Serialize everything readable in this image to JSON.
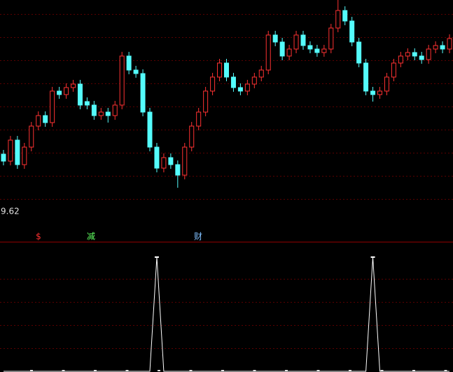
{
  "chart_data": {
    "type": "candlestick",
    "ylim": [
      8.85,
      12.3
    ],
    "up_color": "#ff3232",
    "down_color": "#54fcfc",
    "low_label": "9.62",
    "candles": [
      [
        10.1,
        10.16,
        9.94,
        10.0
      ],
      [
        10.0,
        10.36,
        9.94,
        10.3
      ],
      [
        10.3,
        10.36,
        9.89,
        9.95
      ],
      [
        9.95,
        10.26,
        9.89,
        10.2
      ],
      [
        10.2,
        10.56,
        10.14,
        10.5
      ],
      [
        10.5,
        10.71,
        10.44,
        10.65
      ],
      [
        10.65,
        10.71,
        10.49,
        10.55
      ],
      [
        10.55,
        11.06,
        10.49,
        11.0
      ],
      [
        11.0,
        11.06,
        10.89,
        10.95
      ],
      [
        10.95,
        11.11,
        10.89,
        11.05
      ],
      [
        11.05,
        11.16,
        10.99,
        11.1
      ],
      [
        11.1,
        11.16,
        10.74,
        10.8
      ],
      [
        10.85,
        10.91,
        10.74,
        10.8
      ],
      [
        10.8,
        10.86,
        10.59,
        10.65
      ],
      [
        10.65,
        10.76,
        10.59,
        10.7
      ],
      [
        10.7,
        10.76,
        10.55,
        10.65
      ],
      [
        10.65,
        10.86,
        10.59,
        10.8
      ],
      [
        10.8,
        11.56,
        10.74,
        11.5
      ],
      [
        11.5,
        11.56,
        11.24,
        11.3
      ],
      [
        11.3,
        11.36,
        11.19,
        11.25
      ],
      [
        11.25,
        11.31,
        10.64,
        10.7
      ],
      [
        10.7,
        10.76,
        10.14,
        10.2
      ],
      [
        10.2,
        10.26,
        9.84,
        9.9
      ],
      [
        9.9,
        10.11,
        9.84,
        10.05
      ],
      [
        10.05,
        10.11,
        9.89,
        9.95
      ],
      [
        9.95,
        10.01,
        9.62,
        9.8
      ],
      [
        9.8,
        10.26,
        9.74,
        10.2
      ],
      [
        10.2,
        10.56,
        10.14,
        10.5
      ],
      [
        10.5,
        10.76,
        10.44,
        10.7
      ],
      [
        10.7,
        11.06,
        10.64,
        11.0
      ],
      [
        11.0,
        11.26,
        10.94,
        11.2
      ],
      [
        11.2,
        11.46,
        11.14,
        11.4
      ],
      [
        11.4,
        11.46,
        11.14,
        11.2
      ],
      [
        11.2,
        11.26,
        10.99,
        11.05
      ],
      [
        11.05,
        11.11,
        10.94,
        11.0
      ],
      [
        11.0,
        11.16,
        10.94,
        11.1
      ],
      [
        11.1,
        11.26,
        11.04,
        11.2
      ],
      [
        11.2,
        11.36,
        11.14,
        11.3
      ],
      [
        11.3,
        11.86,
        11.24,
        11.8
      ],
      [
        11.8,
        11.86,
        11.64,
        11.7
      ],
      [
        11.7,
        11.76,
        11.44,
        11.5
      ],
      [
        11.5,
        11.66,
        11.44,
        11.6
      ],
      [
        11.6,
        11.86,
        11.54,
        11.8
      ],
      [
        11.8,
        11.86,
        11.59,
        11.65
      ],
      [
        11.65,
        11.71,
        11.54,
        11.6
      ],
      [
        11.6,
        11.66,
        11.49,
        11.55
      ],
      [
        11.55,
        11.66,
        11.49,
        11.6
      ],
      [
        11.6,
        11.96,
        11.54,
        11.9
      ],
      [
        11.9,
        12.3,
        11.84,
        12.15
      ],
      [
        12.15,
        12.21,
        11.94,
        12.0
      ],
      [
        12.0,
        12.06,
        11.64,
        11.7
      ],
      [
        11.7,
        11.76,
        11.34,
        11.4
      ],
      [
        11.4,
        11.46,
        10.94,
        11.0
      ],
      [
        11.0,
        11.06,
        10.85,
        10.95
      ],
      [
        10.95,
        11.06,
        10.89,
        11.0
      ],
      [
        11.0,
        11.26,
        10.94,
        11.2
      ],
      [
        11.2,
        11.46,
        11.14,
        11.4
      ],
      [
        11.4,
        11.56,
        11.34,
        11.5
      ],
      [
        11.5,
        11.61,
        11.44,
        11.55
      ],
      [
        11.55,
        11.61,
        11.44,
        11.5
      ],
      [
        11.5,
        11.56,
        11.39,
        11.45
      ],
      [
        11.45,
        11.66,
        11.39,
        11.6
      ],
      [
        11.6,
        11.71,
        11.54,
        11.65
      ],
      [
        11.65,
        11.71,
        11.54,
        11.6
      ],
      [
        11.6,
        11.81,
        11.54,
        11.75
      ]
    ],
    "markers": [
      {
        "text": "$",
        "color": "#ff3030"
      },
      {
        "text": "减",
        "color": "#60ff60"
      },
      {
        "text": "财",
        "color": "#80c0ff"
      }
    ],
    "indicator": {
      "color": "#ffffff",
      "ylim": [
        0,
        1
      ],
      "values": [
        0,
        0,
        0,
        0,
        0,
        0,
        0,
        0,
        0,
        0,
        0,
        0,
        0,
        0,
        0,
        0,
        0,
        0,
        0,
        0,
        0,
        0,
        1,
        0,
        0,
        0,
        0,
        0,
        0,
        0,
        0,
        0,
        0,
        0,
        0,
        0,
        0,
        0,
        0,
        0,
        0,
        0,
        0,
        0,
        0,
        0,
        0,
        0,
        0,
        0,
        0,
        0,
        0,
        1,
        0,
        0,
        0,
        0,
        0,
        0,
        0,
        0,
        0,
        0,
        0
      ]
    }
  }
}
